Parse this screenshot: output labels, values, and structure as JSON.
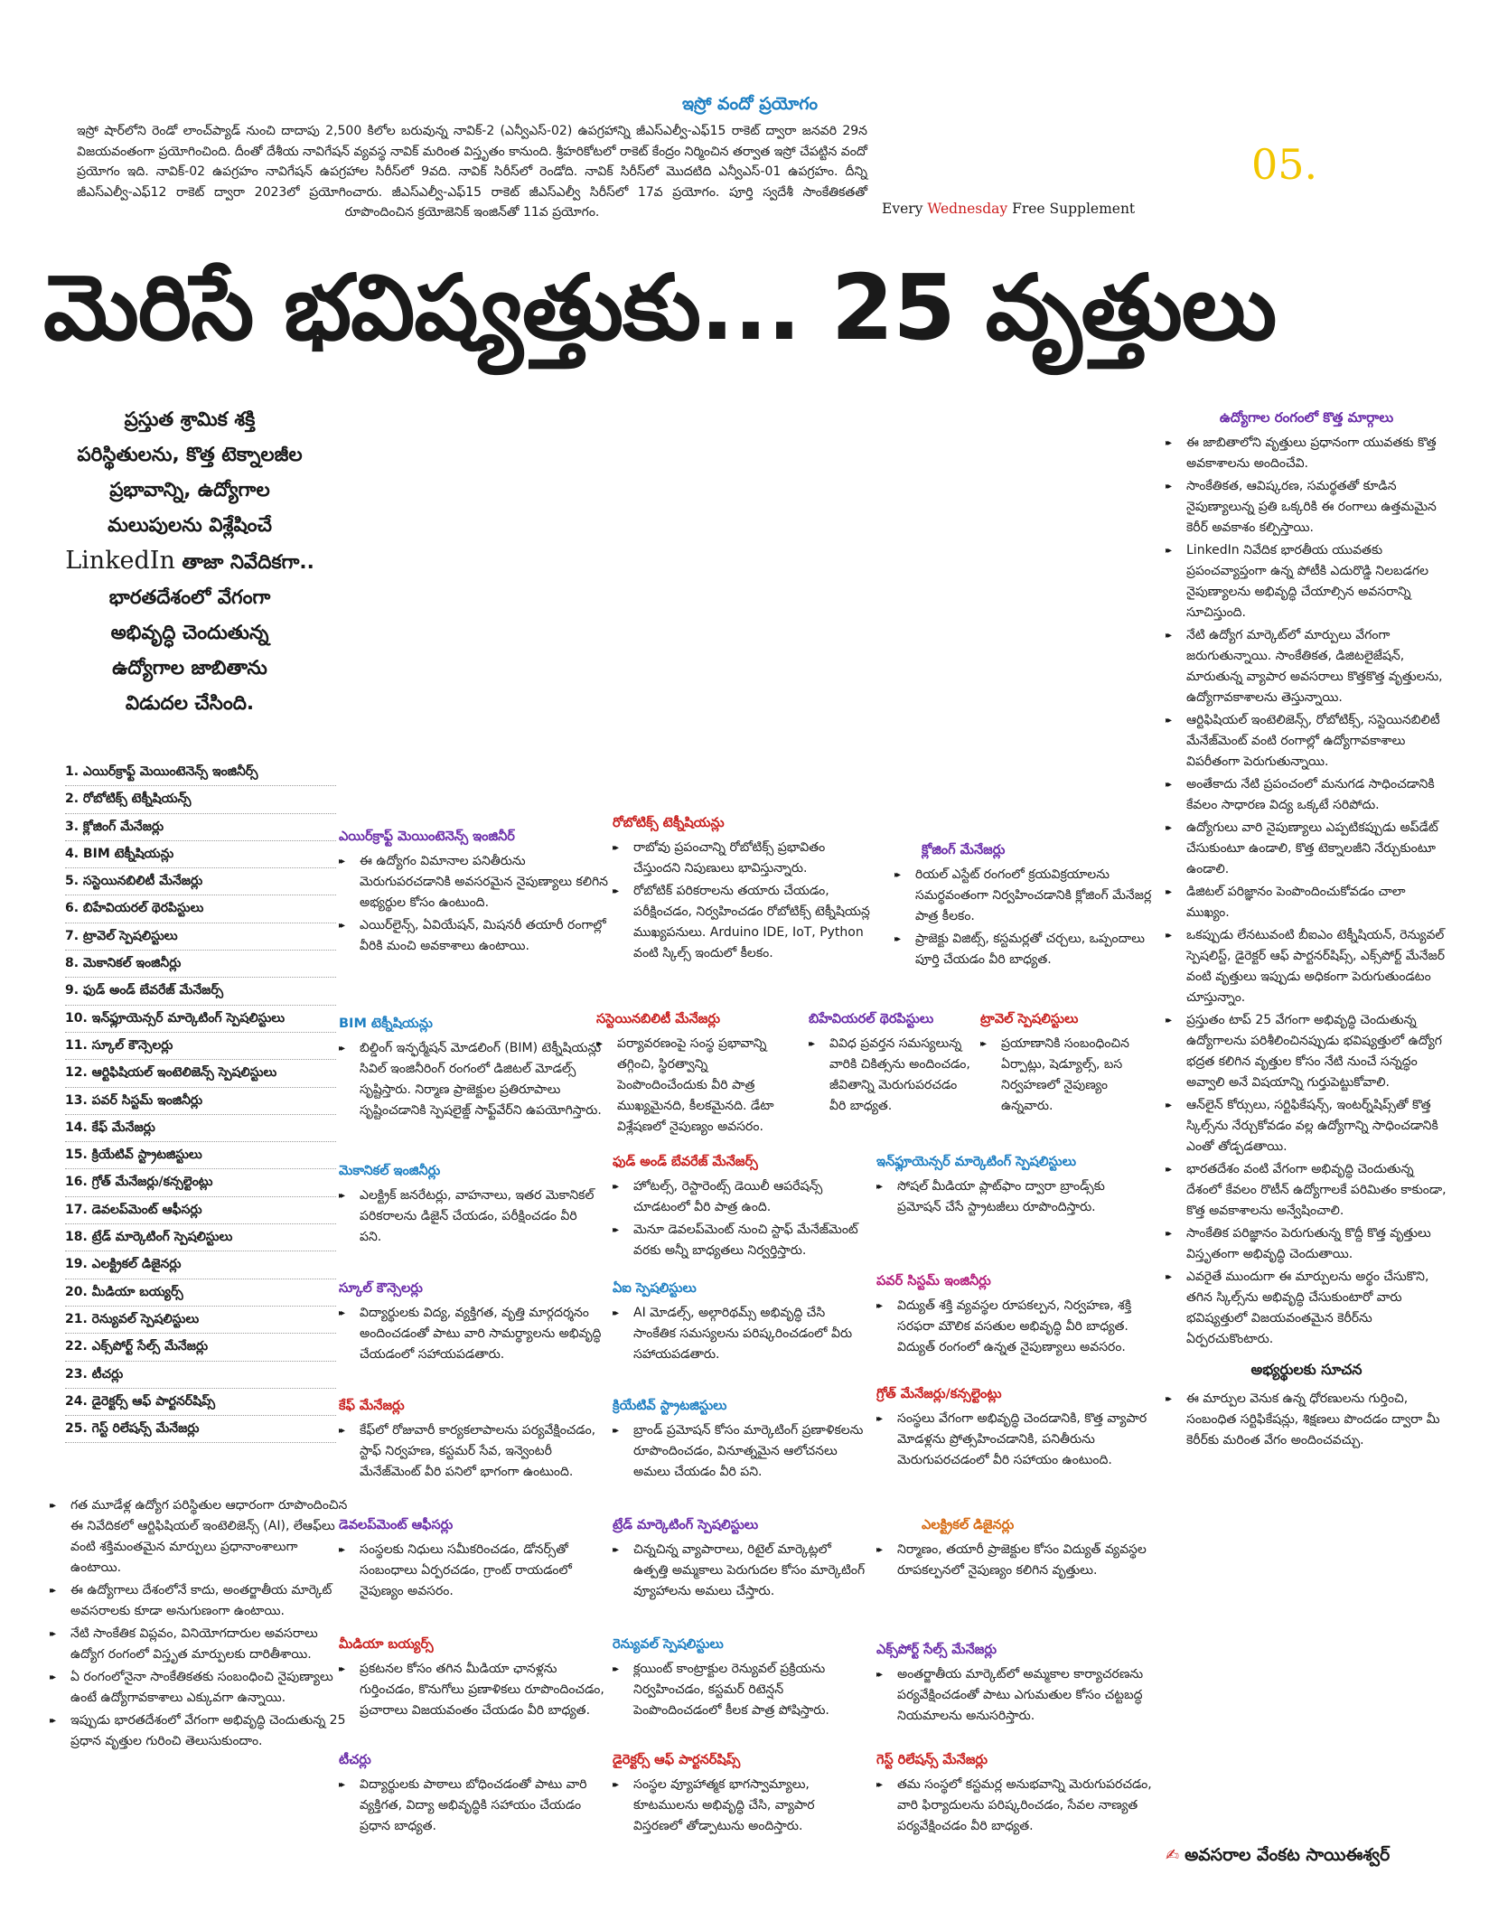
{
  "isro": {
    "title": "ఇస్రో వందో ప్రయోగం",
    "body": "ఇస్రో షార్‌లోని రెండో లాంచ్‌ప్యాడ్‌ నుంచి దాదాపు 2,500 కిలోల బరువున్న నావిక్‌-2 (ఎన్వీఎస్‌-02) ఉపగ్రహాన్ని జీఎస్‌ఎల్వీ-ఎఫ్‌15 రాకెట్‌ ద్వారా జనవరి 29న విజయవంతంగా ప్రయోగించింది. దీంతో దేశీయ నావిగేషన్‌ వ్యవస్థ నావిక్‌ మరింత విస్తృతం కానుంది. శ్రీహరికోటలో రాకెట్‌ కేంద్రం నిర్మించిన తర్వాత ఇస్రో చేపట్టిన వందో ప్రయోగం ఇది. నావిక్‌-02 ఉపగ్రహం నావిగేషన్‌ ఉపగ్రహాల సిరీస్‌లో 9వది. నావిక్‌ సిరీస్‌లో రెండోది. నావిక్‌ సిరీస్‌లో మొదటిది ఎన్వీఎస్‌-01 ఉపగ్రహం. దీన్ని జీఎస్‌ఎల్వీ-ఎఫ్‌12 రాకెట్‌ ద్వారా 2023లో ప్రయోగించారు. జీఎస్‌ఎల్వీ-ఎఫ్‌15 రాకెట్‌ జీఎస్‌ఎల్వీ సిరీస్‌లో 17వ ప్రయోగం. పూర్తి స్వదేశీ సాంకేతికతతో రూపొందించిన క్రయోజెనిక్‌ ఇంజిన్‌తో 11వ ప్రయోగం."
  },
  "issue_no": "05.",
  "tagline": {
    "pre": "Every ",
    "highlight": "Wednesday",
    "post": " Free Supplement"
  },
  "headline": "మెరిసే భవిష్యత్తుకు... 25 వృత్తులు",
  "intro": {
    "line1": "ప్రస్తుత శ్రామిక శక్తి",
    "line2": "పరిస్థితులను, కొత్త టెక్నాలజీల",
    "line3": "ప్రభావాన్ని, ఉద్యోగాల",
    "line4": "మలుపులను విశ్లేషించే",
    "linkedin": "LinkedIn",
    "line5": " తాజా నివేదికగా..",
    "line6": "భారతదేశంలో వేగంగా",
    "line7": "అభివృద్ధి చెందుతున్న",
    "line8": "ఉద్యోగాల జాబితాను",
    "line9": "విడుదల చేసింది."
  },
  "jobs_list": [
    "1. ఎయిర్‌క్రాఫ్ట్‌ మెయింటెనెన్స్‌ ఇంజినీర్స్‌",
    "2. రోబోటిక్స్‌ టెక్నీషియన్స్‌",
    "3. క్లోజింగ్‌ మేనేజర్లు",
    "4. BIM టెక్నీషియన్లు",
    "5. సస్టెయినబిలిటీ మేనేజర్లు",
    "6. బిహేవియరల్‌ థెరపిస్టులు",
    "7. ట్రావెల్‌ స్పెషలిస్టులు",
    "8. మెకానికల్‌ ఇంజినీర్లు",
    "9. ఫుడ్‌ అండ్‌ బేవరేజ్‌ మేనేజర్స్‌",
    "10. ఇన్‌ఫ్లూయెన్సర్‌ మార్కెటింగ్‌ స్పెషలిస్టులు",
    "11. స్కూల్‌ కౌన్సెలర్లు",
    "12. ఆర్టిఫిషియల్‌ ఇంటెలిజెన్స్‌ స్పెషలిస్టులు",
    "13. పవర్‌ సిస్టమ్‌ ఇంజినీర్లు",
    "14. కేఫ్‌ మేనేజర్లు",
    "15. క్రియేటివ్‌ స్ట్రాటజిస్టులు",
    "16. గ్రోత్‌ మేనేజర్లు/కన్సల్టెంట్లు",
    "17. డెవలప్‌మెంట్‌ ఆఫీసర్లు",
    "18. ట్రేడ్‌ మార్కెటింగ్‌ స్పెషలిస్టులు",
    "19. ఎలక్ట్రికల్‌ డిజైనర్లు",
    "20. మీడియా బయ్యర్స్‌",
    "21. రెన్యువల్‌ స్పెషలిస్టులు",
    "22. ఎక్స్‌పోర్ట్‌ సేల్స్‌ మేనేజర్లు",
    "23. టీచర్లు",
    "24. డైరెక్టర్స్‌ ఆఫ్‌ పార్టనర్‌షిప్స్‌",
    "25. గెస్ట్‌ రిలేషన్స్‌ మేనేజర్లు"
  ],
  "left_points": [
    "గత మూడేళ్ల ఉద్యోగ పరిస్థితుల ఆధారంగా రూపొందించిన ఈ నివేదికలో ఆర్టిఫిషియల్‌ ఇంటెలిజెన్స్‌ (AI), లేఆఫ్‌లు వంటి శక్తిమంతమైన మార్పులు ప్రధానాంశాలుగా ఉంటాయి.",
    "ఈ ఉద్యోగాలు దేశంలోనే కాదు, అంతర్జాతీయ మార్కెట్‌ అవసరాలకు కూడా అనుగుణంగా ఉంటాయి.",
    "నేటి సాంకేతిక విప్లవం, వినియోగదారుల అవసరాలు ఉద్యోగ రంగంలో విస్తృత మార్పులకు దారితీశాయి.",
    "ఏ రంగంలోనైనా సాంకేతికతకు సంబంధించి నైపుణ్యాలు ఉంటే ఉద్యోగావకాశాలు ఎక్కువగా ఉన్నాయి.",
    "ఇప్పుడు భారతదేశంలో వేగంగా అభివృద్ధి చెందుతున్న 25 ప్రధాన వృత్తుల గురించి తెలుసుకుందాం."
  ],
  "sections": {
    "aircraft": {
      "title": "ఎయిర్‌క్రాఫ్ట్‌ మెయింటెనెన్స్‌ ఇంజినీర్",
      "points": [
        "ఈ ఉద్యోగం విమానాల పనితీరును మెరుగుపరచడానికి అవసరమైన నైపుణ్యాలు కలిగిన అభ్యర్థుల కోసం ఉంటుంది.",
        "ఎయిర్‌లైన్స్‌, ఏవియేషన్‌, మిషనరీ తయారీ రంగాల్లో వీరికి మంచి అవకాశాలు ఉంటాయి."
      ]
    },
    "robotics": {
      "title": "రోబోటిక్స్‌ టెక్నీషియన్లు",
      "points": [
        "రాబోవు ప్రపంచాన్ని రోబోటిక్స్‌ ప్రభావితం చేస్తుందని నిపుణులు భావిస్తున్నారు.",
        "రోబోటిక్‌ పరికరాలను తయారు చేయడం, పరీక్షించడం, నిర్వహించడం రోబోటిక్స్‌ టెక్నీషియన్ల ముఖ్యపనులు. Arduino IDE, IoT, Python వంటి స్కిల్స్‌ ఇందులో కీలకం."
      ]
    },
    "closing": {
      "title": "క్లోజింగ్‌ మేనేజర్లు",
      "points": [
        "రియల్‌ ఎస్టేట్‌ రంగంలో క్రయవిక్రయాలను సమర్థవంతంగా నిర్వహించడానికి క్లోజింగ్‌ మేనేజర్ల పాత్ర కీలకం.",
        "ప్రాజెక్టు విజిట్స్‌, కస్టమర్లతో చర్చలు, ఒప్పందాలు పూర్తి చేయడం వీరి బాధ్యత."
      ]
    },
    "bim": {
      "title": "BIM టెక్నీషియన్లు",
      "points": [
        "బిల్డింగ్‌ ఇన్ఫర్మేషన్‌ మోడలింగ్‌ (BIM) టెక్నీషియన్లు సివిల్‌ ఇంజినీరింగ్‌ రంగంలో డిజిటల్‌ మోడల్స్‌ సృష్టిస్తారు. నిర్మాణ ప్రాజెక్టుల ప్రతిరూపాలు సృష్టించడానికి స్పెషలైజ్డ్‌ సాఫ్ట్‌వేర్‌ని ఉపయోగిస్తారు."
      ]
    },
    "sustain": {
      "title": "సస్టెయినబిలిటీ మేనేజర్లు",
      "points": [
        "పర్యావరణంపై సంస్థ ప్రభావాన్ని తగ్గించి, స్థిరత్వాన్ని పెంపొందించేందుకు వీరి పాత్ర ముఖ్యమైనది, కీలకమైనది. డేటా విశ్లేషణలో నైపుణ్యం అవసరం."
      ]
    },
    "behavior": {
      "title": "బిహేవియరల్‌ థెరపిస్టులు",
      "points": [
        "వివిధ ప్రవర్తన సమస్యలున్న వారికి చికిత్సను అందించడం, జీవితాన్ని మెరుగుపరచడం వీరి బాధ్యత."
      ]
    },
    "travel": {
      "title": "ట్రావెల్‌ స్పెషలిస్టులు",
      "points": [
        "ప్రయాణానికి సంబంధించిన ఏర్పాట్లు, షెడ్యూల్స్‌, బస నిర్వహణలో నైపుణ్యం ఉన్నవారు."
      ]
    },
    "mech": {
      "title": "మెకానికల్‌ ఇంజినీర్లు",
      "points": [
        "ఎలక్ట్రిక్‌ జనరేటర్లు, వాహనాలు, ఇతర మెకానికల్‌ పరికరాలను డిజైన్‌ చేయడం, పరీక్షించడం వీరి పని."
      ]
    },
    "food": {
      "title": "ఫుడ్‌ అండ్‌ బేవరేజ్‌ మేనేజర్స్‌",
      "points": [
        "హోటల్స్‌, రెస్టారెంట్స్‌ డెయిలీ ఆపరేషన్స్‌ చూడటంలో వీరి పాత్ర ఉంది.",
        "మెనూ డెవలప్‌మెంట్‌ నుంచి స్టాఫ్‌ మేనేజ్‌మెంట్‌ వరకు అన్నీ బాధ్యతలు నిర్వర్తిస్తారు."
      ]
    },
    "influencer": {
      "title": "ఇన్‌ఫ్లూయెన్సర్‌ మార్కెటింగ్‌ స్పెషలిస్టులు",
      "points": [
        "సోషల్‌ మీడియా ప్లాట్‌ఫాం ద్వారా బ్రాండ్స్‌కు ప్రమోషన్‌ చేసే స్ట్రాటజీలు రూపొందిస్తారు."
      ]
    },
    "school": {
      "title": "స్కూల్‌ కౌన్సెలర్లు",
      "points": [
        "విద్యార్థులకు విద్య, వ్యక్తిగత, వృత్తి మార్గదర్శనం అందించడంతో పాటు వారి సామర్థ్యాలను అభివృద్ధి చేయడంలో సహాయపడతారు."
      ]
    },
    "ai": {
      "title": "ఏఐ స్పెషలిస్టులు",
      "points": [
        "AI మోడల్స్‌, అల్గారిథమ్స్‌ అభివృద్ధి చేసి సాంకేతిక సమస్యలను పరిష్కరించడంలో వీరు సహాయపడతారు."
      ]
    },
    "power": {
      "title": "పవర్‌ సిస్టమ్‌ ఇంజినీర్లు",
      "points": [
        "విద్యుత్‌ శక్తి వ్యవస్థల రూపకల్పన, నిర్వహణ, శక్తి సరఫరా మౌలిక వసతుల అభివృద్ధి వీరి బాధ్యత. విద్యుత్‌ రంగంలో ఉన్నత నైపుణ్యాలు అవసరం."
      ]
    },
    "cafe": {
      "title": "కేఫ్‌ మేనేజర్లు",
      "points": [
        "కేఫ్‌లో రోజువారీ కార్యకలాపాలను పర్యవేక్షించడం, స్టాఫ్‌ నిర్వహణ, కస్టమర్‌ సేవ, ఇన్వెంటరీ మేనేజ్‌మెంట్‌ వీరి పనిలో భాగంగా ఉంటుంది."
      ]
    },
    "creative": {
      "title": "క్రియేటివ్‌ స్ట్రాటజిస్టులు",
      "points": [
        "బ్రాండ్‌ ప్రమోషన్‌ కోసం మార్కెటింగ్‌ ప్రణాళికలను రూపొందించడం, వినూత్నమైన ఆలోచనలు అమలు చేయడం వీరి పని."
      ]
    },
    "growth": {
      "title": "గ్రోత్‌ మేనేజర్లు/కన్సల్టెంట్లు",
      "points": [
        "సంస్థలు వేగంగా అభివృద్ధి చెందడానికి, కొత్త వ్యాపార మోడళ్లను ప్రోత్సహించడానికి, పనితీరును మెరుగుపరచడంలో వీరి సహాయం ఉంటుంది."
      ]
    },
    "devofficer": {
      "title": "డెవలప్‌మెంట్‌ ఆఫీసర్లు",
      "points": [
        "సంస్థలకు నిధులు సమీకరించడం, డోనర్స్‌తో సంబంధాలు ఏర్పరచడం, గ్రాంట్‌ రాయడంలో నైపుణ్యం అవసరం."
      ]
    },
    "trade": {
      "title": "ట్రేడ్‌ మార్కెటింగ్‌ స్పెషలిస్టులు",
      "points": [
        "చిన్నచిన్న వ్యాపారాలు, రిటైల్‌ మార్కెట్లలో ఉత్పత్తి అమ్మకాలు పెరుగుదల కోసం మార్కెటింగ్‌ వ్యూహాలను అమలు చేస్తారు."
      ]
    },
    "electrical": {
      "title": "ఎలక్ట్రికల్‌ డిజైనర్లు",
      "points": [
        "నిర్మాణం, తయారీ ప్రాజెక్టుల కోసం విద్యుత్‌ వ్యవస్థల రూపకల్పనలో నైపుణ్యం కలిగిన వృత్తులు."
      ]
    },
    "media": {
      "title": "మీడియా బయ్యర్స్‌",
      "points": [
        "ప్రకటనల కోసం తగిన మీడియా ఛానళ్లను గుర్తించడం, కొనుగోలు ప్రణాళికలు రూపొందించడం, ప్రచారాలు విజయవంతం చేయడం వీరి బాధ్యత."
      ]
    },
    "renewal": {
      "title": "రెన్యువల్‌ స్పెషలిస్టులు",
      "points": [
        "క్లయింట్‌ కాంట్రాక్టుల రెన్యువల్‌ ప్రక్రియను నిర్వహించడం, కస్టమర్‌ రిటెన్షన్‌ పెంపొందించడంలో కీలక పాత్ర పోషిస్తారు."
      ]
    },
    "export": {
      "title": "ఎక్స్‌పోర్ట్‌ సేల్స్‌ మేనేజర్లు",
      "points": [
        "అంతర్జాతీయ మార్కెట్‌లో అమ్మకాల కార్యాచరణను పర్యవేక్షించడంతో పాటు ఎగుమతుల కోసం చట్టబద్ధ నియమాలను అనుసరిస్తారు."
      ]
    },
    "teachers": {
      "title": "టీచర్లు",
      "points": [
        "విద్యార్థులకు పాఠాలు బోధించడంతో పాటు వారి వ్యక్తిగత, విద్యా అభివృద్ధికి సహాయం చేయడం ప్రధాన బాధ్యత."
      ]
    },
    "directors": {
      "title": "డైరెక్టర్స్‌ ఆఫ్‌ పార్టనర్‌షిప్స్‌",
      "points": [
        "సంస్థల వ్యూహాత్మక భాగస్వామ్యాలు, కూటములను అభివృద్ధి చేసి, వ్యాపార విస్తరణలో తోడ్పాటును అందిస్తారు."
      ]
    },
    "guest": {
      "title": "గెస్ట్‌ రిలేషన్స్‌ మేనేజర్లు",
      "points": [
        "తమ సంస్థలో కస్టమర్ల అనుభవాన్ని మెరుగుపరచడం, వారి ఫిర్యాదులను పరిష్కరించడం, సేవల నాణ్యత పర్యవేక్షించడం వీరి బాధ్యత."
      ]
    }
  },
  "right": {
    "title": "ఉద్యోగాల రంగంలో కొత్త మార్గాలు",
    "points": [
      "ఈ జాబితాలోని వృత్తులు ప్రధానంగా యువతకు కొత్త అవకాశాలను అందించేవి.",
      "సాంకేతికత, ఆవిష్కరణ, సమర్థతతో కూడిన నైపుణ్యాలున్న ప్రతి ఒక్కరికి ఈ రంగాలు ఉత్తమమైన కెరీర్‌ అవకాశం కల్పిస్తాయి.",
      "LinkedIn నివేదిక భారతీయ యువతకు ప్రపంచవ్యాప్తంగా ఉన్న పోటీకి ఎదురొడ్డి నిలబడగల నైపుణ్యాలను అభివృద్ధి చేయాల్సిన అవసరాన్ని సూచిస్తుంది.",
      "నేటి ఉద్యోగ మార్కెట్‌లో మార్పులు వేగంగా జరుగుతున్నాయి. సాంకేతికత, డిజిటలైజేషన్‌, మారుతున్న వ్యాపార అవసరాలు కొత్తకొత్త వృత్తులను, ఉద్యోగావకాశాలను తెస్తున్నాయి.",
      "ఆర్టిఫిషియల్‌ ఇంటెలిజెన్స్‌, రోబోటిక్స్‌, సస్టెయినబిలిటీ మేనేజ్‌మెంట్‌ వంటి రంగాల్లో ఉద్యోగావకాశాలు విపరీతంగా పెరుగుతున్నాయి.",
      "అంతేకాదు నేటి ప్రపంచంలో మనుగడ సాధించడానికి కేవలం సాధారణ విద్య ఒక్కటే సరిపోదు.",
      "ఉద్యోగులు వారి నైపుణ్యాలు ఎప్పటికప్పుడు అప్‌డేట్‌ చేసుకుంటూ ఉండాలి, కొత్త టెక్నాలజీని నేర్చుకుంటూ ఉండాలి.",
      "డిజిటల్‌ పరిజ్ఞానం పెంపొందించుకోవడం చాలా ముఖ్యం.",
      "ఒకప్పుడు లేనటువంటి బీఐఎం టెక్నీషియన్‌, రెన్యువల్‌ స్పెషలిస్ట్‌, డైరెక్టర్‌ ఆఫ్‌ పార్టనర్‌షిప్స్‌, ఎక్స్‌పోర్ట్‌ మేనేజర్‌ వంటి వృత్తులు ఇప్పుడు అధికంగా పెరుగుతుండటం చూస్తున్నాం.",
      "ప్రస్తుతం టాప్‌ 25 వేగంగా అభివృద్ధి చెందుతున్న ఉద్యోగాలను పరిశీలించినప్పుడు భవిష్యత్తులో ఉద్యోగ భద్రత కలిగిన వృత్తుల కోసం నేటి నుంచే సన్నద్ధం అవ్వాలి అనే విషయాన్ని గుర్తుపెట్టుకోవాలి.",
      "ఆన్‌లైన్‌ కోర్సులు, సర్టిఫికేషన్స్‌, ఇంటర్న్‌షిప్స్‌తో కొత్త స్కిల్స్‌ను నేర్చుకోవడం వల్ల ఉద్యోగాన్ని సాధించడానికి ఎంతో తోడ్పడతాయి.",
      "భారతదేశం వంటి వేగంగా అభివృద్ధి చెందుతున్న దేశంలో కేవలం రొటీన్‌ ఉద్యోగాలకే పరిమితం కాకుండా, కొత్త అవకాశాలను అన్వేషించాలి.",
      "సాంకేతిక పరిజ్ఞానం పెరుగుతున్న కొద్దీ కొత్త వృత్తులు విస్తృతంగా అభివృద్ధి చెందుతాయి.",
      "ఎవరైతే ముందుగా ఈ మార్పులను అర్థం చేసుకొని, తగిన స్కిల్స్‌ను అభివృద్ధి చేసుకుంటారో వారు భవిష్యత్తులో విజయవంతమైన కెరీర్‌ను ఏర్పరచుకొంటారు."
    ],
    "suggestion_title": "అభ్యర్థులకు సూచన",
    "suggestion": "ఈ మార్పుల వెనుక ఉన్న ధోరణులను గుర్తించి, సంబంధిత సర్టిఫికేషన్లు, శిక్షణలు పొందడం ద్వారా మీ కెరీర్‌కు మరింత వేగం అందించవచ్చు."
  },
  "author": "అవసరాల వేంకట సాయిఈశ్వర్‌"
}
